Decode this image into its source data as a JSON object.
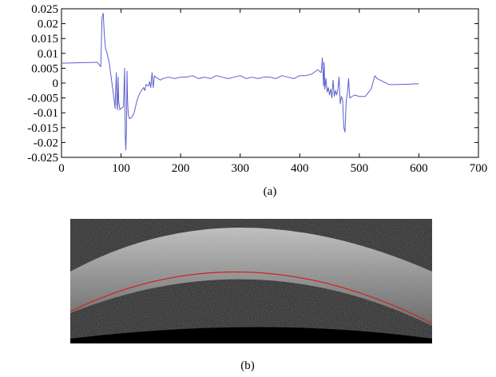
{
  "chart_data": [
    {
      "type": "line",
      "caption": "(a)",
      "xlim": [
        0,
        700
      ],
      "ylim": [
        -0.025,
        0.025
      ],
      "x_ticks": [
        "0",
        "100",
        "200",
        "300",
        "400",
        "500",
        "600",
        "700"
      ],
      "y_ticks": [
        "0.025",
        "0.02",
        "0.015",
        "0.01",
        "0.005",
        "0",
        "-0.005",
        "-0.01",
        "-0.015",
        "-0.02",
        "-0.025"
      ],
      "grid": false,
      "legend": "none",
      "series": [
        {
          "color": "#5c5fcf",
          "x": [
            0,
            20,
            40,
            60,
            66,
            68,
            70,
            72,
            74,
            76,
            80,
            84,
            88,
            90,
            92,
            93,
            94,
            95,
            96,
            98,
            100,
            104,
            106,
            107,
            108,
            109,
            110,
            111,
            112,
            114,
            118,
            122,
            126,
            130,
            134,
            138,
            140,
            142,
            146,
            148,
            150,
            152,
            154,
            156,
            158,
            162,
            166,
            170,
            180,
            190,
            200,
            210,
            220,
            230,
            240,
            250,
            260,
            270,
            280,
            290,
            300,
            310,
            320,
            330,
            340,
            350,
            360,
            370,
            380,
            390,
            400,
            410,
            420,
            430,
            436,
            438,
            440,
            441,
            442,
            444,
            446,
            448,
            450,
            452,
            454,
            456,
            458,
            460,
            462,
            464,
            466,
            468,
            470,
            472,
            474,
            476,
            478,
            480,
            482,
            484,
            488,
            492,
            500,
            510,
            520,
            524,
            526,
            530,
            540,
            550,
            560,
            580,
            600
          ],
          "y": [
            0.0067,
            0.0068,
            0.0069,
            0.007,
            0.0055,
            0.022,
            0.0235,
            0.016,
            0.0115,
            0.0105,
            0.007,
            0.001,
            -0.005,
            -0.0085,
            0.0035,
            -0.007,
            -0.009,
            0.002,
            -0.006,
            -0.009,
            -0.0085,
            -0.008,
            0.005,
            -0.018,
            -0.0225,
            -0.016,
            0.004,
            -0.006,
            -0.0105,
            -0.012,
            -0.0115,
            -0.01,
            -0.0065,
            -0.004,
            -0.0025,
            -0.0015,
            -0.0025,
            -0.0005,
            -0.001,
            0.0005,
            -0.0015,
            0.0035,
            -0.0015,
            0.0025,
            0.002,
            0.0015,
            0.001,
            0.0015,
            0.002,
            0.0015,
            0.002,
            0.002,
            0.0025,
            0.0015,
            0.002,
            0.0015,
            0.0025,
            0.002,
            0.0015,
            0.002,
            0.0025,
            0.0015,
            0.002,
            0.0015,
            0.002,
            0.002,
            0.0015,
            0.0025,
            0.002,
            0.0015,
            0.0025,
            0.0025,
            0.003,
            0.0045,
            0.0035,
            0.0085,
            -0.001,
            0.007,
            -0.002,
            0.0015,
            -0.003,
            -0.0015,
            -0.004,
            -0.002,
            -0.005,
            0.001,
            -0.0045,
            -0.0025,
            -0.004,
            -0.002,
            0.002,
            -0.007,
            -0.0045,
            -0.0055,
            -0.015,
            -0.0165,
            -0.006,
            -0.0035,
            0.0015,
            -0.005,
            -0.0045,
            -0.004,
            -0.0045,
            -0.0045,
            -0.002,
            0.001,
            0.0025,
            0.0015,
            0.0005,
            -0.0005,
            -0.0005,
            -0.0004,
            -0.0002
          ]
        }
      ]
    }
  ],
  "image_panel": {
    "caption": "(b)",
    "background_color": "#000000",
    "tissue_color": "#c8c8c8",
    "boundary_line_color": "#d62020"
  }
}
